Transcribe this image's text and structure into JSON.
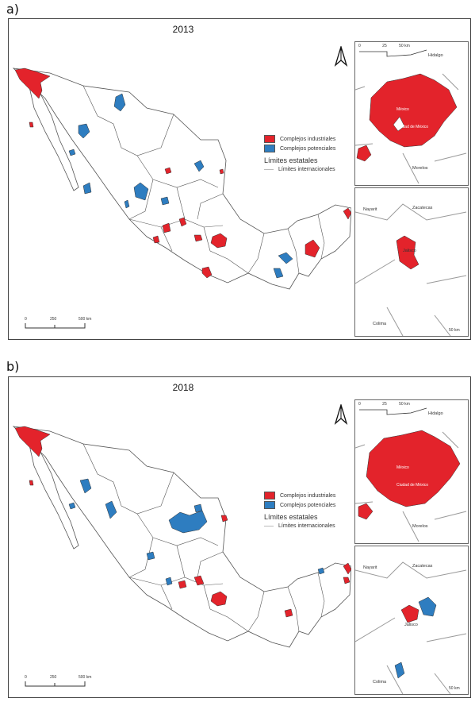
{
  "panels": [
    {
      "label": "a)",
      "title": "2013",
      "legend": {
        "industrial": "Complejos industriales",
        "potential": "Complejos potenciales",
        "states_header": "Límites estatales",
        "international": "Límites internacionales"
      },
      "scale": {
        "t0": "0",
        "t1": "250",
        "t2": "500 km"
      },
      "inset_top": {
        "scale": {
          "t0": "0",
          "t1": "25",
          "t2": "50 km"
        },
        "hidalgo": "Hidalgo",
        "mexico": "México",
        "cdmx": "Ciudad de México",
        "morelos": "Morelos"
      },
      "inset_bottom": {
        "nayarit": "Nayarit",
        "zacatecas": "Zacatecas",
        "jalisco": "Jalisco",
        "colima": "Colima",
        "scale": "50 km"
      }
    },
    {
      "label": "b)",
      "title": "2018",
      "legend": {
        "industrial": "Complejos industriales",
        "potential": "Complejos potenciales",
        "states_header": "Límites estatales",
        "international": "Límites internacionales"
      },
      "scale": {
        "t0": "0",
        "t1": "250",
        "t2": "500 km"
      },
      "inset_top": {
        "scale": {
          "t0": "0",
          "t1": "25",
          "t2": "50 km"
        },
        "hidalgo": "Hidalgo",
        "mexico": "México",
        "cdmx": "Ciudad de México",
        "morelos": "Morelos"
      },
      "inset_bottom": {
        "nayarit": "Nayarit",
        "zacatecas": "Zacatecas",
        "jalisco": "Jalisco",
        "colima": "Colima",
        "scale": "50 km"
      }
    }
  ],
  "colors": {
    "industrial": "#e3232b",
    "potential": "#2e7dc0",
    "border": "#555555"
  },
  "icons": [
    "north-arrow-icon"
  ]
}
